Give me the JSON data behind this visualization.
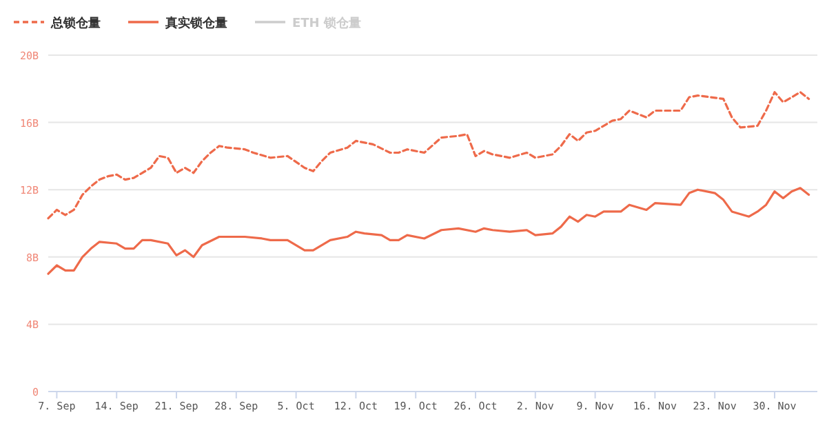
{
  "chart_data": {
    "type": "line",
    "legend": "top left",
    "grid": "y",
    "xlim": [
      "--09-06",
      "--12-05"
    ],
    "xticks": [
      {
        "value": "--09-07",
        "label": "7. Sep"
      },
      {
        "value": "--09-14",
        "label": "14. Sep"
      },
      {
        "value": "--09-21",
        "label": "21. Sep"
      },
      {
        "value": "--09-28",
        "label": "28. Sep"
      },
      {
        "value": "--10-05",
        "label": "5. Oct"
      },
      {
        "value": "--10-12",
        "label": "12. Oct"
      },
      {
        "value": "--10-19",
        "label": "19. Oct"
      },
      {
        "value": "--10-26",
        "label": "26. Oct"
      },
      {
        "value": "--11-02",
        "label": "2. Nov"
      },
      {
        "value": "--11-09",
        "label": "9. Nov"
      },
      {
        "value": "--11-16",
        "label": "16. Nov"
      },
      {
        "value": "--11-23",
        "label": "23. Nov"
      },
      {
        "value": "--11-30",
        "label": "30. Nov"
      }
    ],
    "ylim": [
      0,
      20
    ],
    "yticks": [
      0,
      {
        "value": 4,
        "label": "4B"
      },
      {
        "value": 8,
        "label": "8B"
      },
      {
        "value": 12,
        "label": "12B"
      },
      {
        "value": 16,
        "label": "16B"
      },
      {
        "value": 20,
        "label": "20B"
      }
    ],
    "series": [
      {
        "name": "总锁仓量",
        "color": "#ee6a4a",
        "line_style": "dashed",
        "x": [
          "--09-06",
          "--09-07",
          "--09-08",
          "--09-09",
          "--09-10",
          "--09-11",
          "--09-12",
          "--09-13",
          "--09-14",
          "--09-15",
          "--09-16",
          "--09-17",
          "--09-18",
          "--09-19",
          "--09-20",
          "--09-21",
          "--09-22",
          "--09-23",
          "--09-24",
          "--09-25",
          "--09-26",
          "--09-27",
          "--09-29",
          "--09-30",
          "--10-02",
          "--10-04",
          "--10-06",
          "--10-07",
          "--10-08",
          "--10-09",
          "--10-11",
          "--10-12",
          "--10-13",
          "--10-14",
          "--10-16",
          "--10-17",
          "--10-18",
          "--10-20",
          "--10-22",
          "--10-24",
          "--10-25",
          "--10-26",
          "--10-27",
          "--10-28",
          "--10-30",
          "--11-01",
          "--11-02",
          "--11-04",
          "--11-05",
          "--11-06",
          "--11-07",
          "--11-08",
          "--11-09",
          "--11-11",
          "--11-12",
          "--11-13",
          "--11-14",
          "--11-15",
          "--11-16",
          "--11-19",
          "--11-20",
          "--11-21",
          "--11-24",
          "--11-25",
          "--11-26",
          "--11-28",
          "--11-29",
          "--11-30",
          "--12-01",
          "--12-02",
          "--12-03",
          "--12-04"
        ],
        "values": [
          10.3,
          10.8,
          10.5,
          10.8,
          11.7,
          12.2,
          12.6,
          12.8,
          12.9,
          12.6,
          12.7,
          13.0,
          13.3,
          14.0,
          13.9,
          13.0,
          13.3,
          13.0,
          13.7,
          14.2,
          14.6,
          14.5,
          14.4,
          14.2,
          13.9,
          14.0,
          13.3,
          13.1,
          13.7,
          14.2,
          14.5,
          14.9,
          14.8,
          14.7,
          14.2,
          14.2,
          14.4,
          14.2,
          15.1,
          15.2,
          15.3,
          14.0,
          14.3,
          14.1,
          13.9,
          14.2,
          13.9,
          14.1,
          14.6,
          15.3,
          14.9,
          15.4,
          15.5,
          16.1,
          16.2,
          16.7,
          16.5,
          16.3,
          16.7,
          16.7,
          17.5,
          17.6,
          17.4,
          16.3,
          15.7,
          15.8,
          16.7,
          17.8,
          17.2,
          17.5,
          17.8,
          17.4
        ]
      },
      {
        "name": "真实锁仓量",
        "color": "#ee6a4a",
        "line_style": "solid",
        "x": [
          "--09-06",
          "--09-07",
          "--09-08",
          "--09-09",
          "--09-10",
          "--09-11",
          "--09-12",
          "--09-14",
          "--09-15",
          "--09-16",
          "--09-17",
          "--09-18",
          "--09-20",
          "--09-21",
          "--09-22",
          "--09-23",
          "--09-24",
          "--09-26",
          "--09-29",
          "--10-01",
          "--10-02",
          "--10-04",
          "--10-06",
          "--10-07",
          "--10-09",
          "--10-11",
          "--10-12",
          "--10-13",
          "--10-15",
          "--10-16",
          "--10-17",
          "--10-18",
          "--10-20",
          "--10-22",
          "--10-24",
          "--10-26",
          "--10-27",
          "--10-28",
          "--10-30",
          "--11-01",
          "--11-02",
          "--11-04",
          "--11-05",
          "--11-06",
          "--11-07",
          "--11-08",
          "--11-09",
          "--11-10",
          "--11-12",
          "--11-13",
          "--11-15",
          "--11-16",
          "--11-19",
          "--11-20",
          "--11-21",
          "--11-23",
          "--11-24",
          "--11-25",
          "--11-27",
          "--11-28",
          "--11-29",
          "--11-30",
          "--12-01",
          "--12-02",
          "--12-03",
          "--12-04"
        ],
        "values": [
          7.0,
          7.5,
          7.2,
          7.2,
          8.0,
          8.5,
          8.9,
          8.8,
          8.5,
          8.5,
          9.0,
          9.0,
          8.8,
          8.1,
          8.4,
          8.0,
          8.7,
          9.2,
          9.2,
          9.1,
          9.0,
          9.0,
          8.4,
          8.4,
          9.0,
          9.2,
          9.5,
          9.4,
          9.3,
          9.0,
          9.0,
          9.3,
          9.1,
          9.6,
          9.7,
          9.5,
          9.7,
          9.6,
          9.5,
          9.6,
          9.3,
          9.4,
          9.8,
          10.4,
          10.1,
          10.5,
          10.4,
          10.7,
          10.7,
          11.1,
          10.8,
          11.2,
          11.1,
          11.8,
          12.0,
          11.8,
          11.4,
          10.7,
          10.4,
          10.7,
          11.1,
          11.9,
          11.5,
          11.9,
          12.1,
          11.7
        ]
      },
      {
        "name": "ETH 锁仓量",
        "color": "#cccccc",
        "line_style": "solid"
      }
    ]
  }
}
